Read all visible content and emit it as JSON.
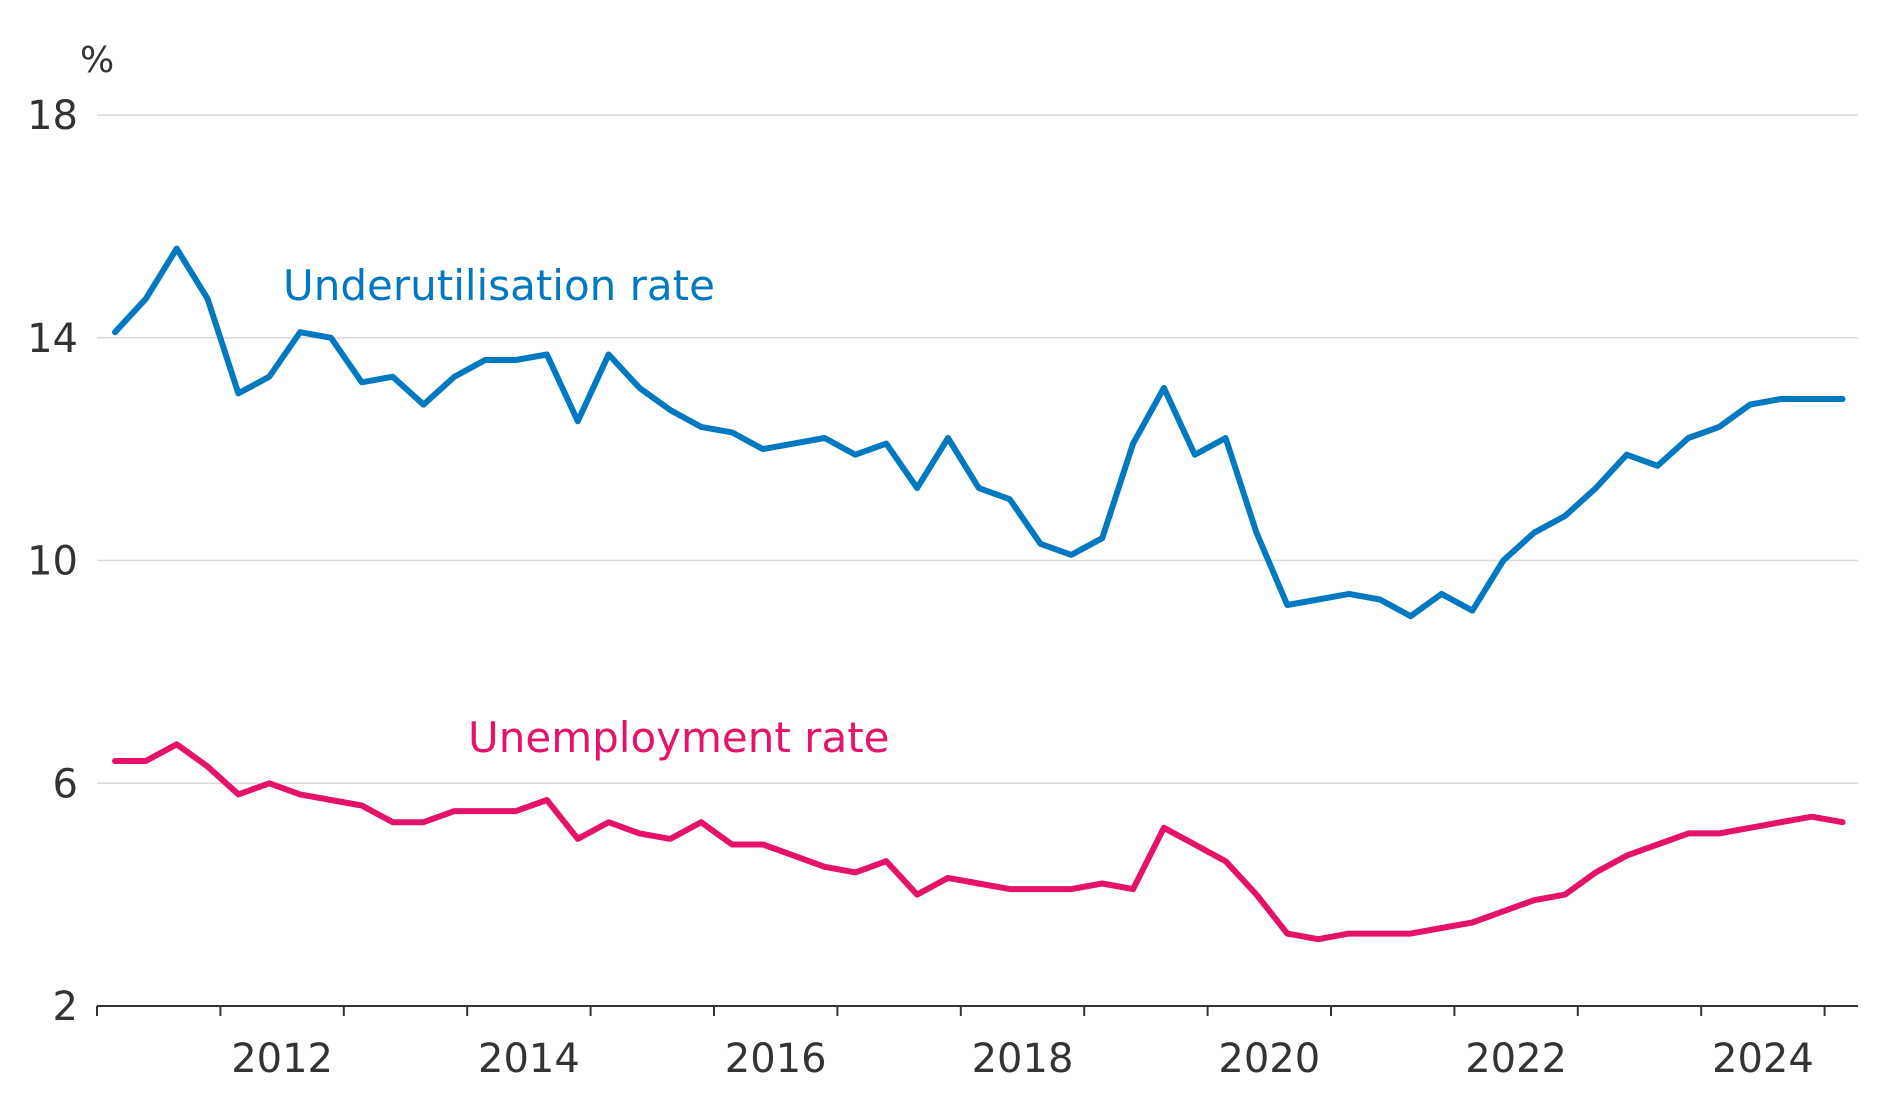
{
  "chart_data": {
    "type": "line",
    "y_unit": "%",
    "ylim": [
      2,
      18
    ],
    "yticks": [
      2,
      6,
      10,
      14,
      18
    ],
    "x_tick_labels": [
      "2012",
      "2014",
      "2016",
      "2018",
      "2020",
      "2022",
      "2024"
    ],
    "x_range": [
      "2011-Q3",
      "2025-Q4"
    ],
    "grid": true,
    "x": [
      "2011-Q3",
      "2011-Q4",
      "2012-Q1",
      "2012-Q2",
      "2012-Q3",
      "2012-Q4",
      "2013-Q1",
      "2013-Q2",
      "2013-Q3",
      "2013-Q4",
      "2014-Q1",
      "2014-Q2",
      "2014-Q3",
      "2014-Q4",
      "2015-Q1",
      "2015-Q2",
      "2015-Q3",
      "2015-Q4",
      "2016-Q1",
      "2016-Q2",
      "2016-Q3",
      "2016-Q4",
      "2017-Q1",
      "2017-Q2",
      "2017-Q3",
      "2017-Q4",
      "2018-Q1",
      "2018-Q2",
      "2018-Q3",
      "2018-Q4",
      "2019-Q1",
      "2019-Q2",
      "2019-Q3",
      "2019-Q4",
      "2020-Q1",
      "2020-Q2",
      "2020-Q3",
      "2020-Q4",
      "2021-Q1",
      "2021-Q2",
      "2021-Q3",
      "2021-Q4",
      "2022-Q1",
      "2022-Q2",
      "2022-Q3",
      "2022-Q4",
      "2023-Q1",
      "2023-Q2",
      "2023-Q3",
      "2023-Q4",
      "2024-Q1",
      "2024-Q2",
      "2024-Q3",
      "2024-Q4",
      "2025-Q1",
      "2025-Q2",
      "2025-Q3"
    ],
    "series": [
      {
        "name": "Underutilisation rate",
        "color": "#0079C1",
        "values": [
          14.1,
          14.7,
          15.6,
          14.7,
          13.0,
          13.3,
          14.1,
          14.0,
          13.2,
          13.3,
          12.8,
          13.3,
          13.6,
          13.6,
          13.7,
          12.5,
          13.7,
          13.1,
          12.7,
          12.4,
          12.3,
          12.0,
          12.1,
          12.2,
          11.9,
          12.1,
          11.3,
          12.2,
          11.3,
          11.1,
          10.3,
          10.1,
          10.4,
          12.1,
          13.1,
          11.9,
          12.2,
          10.5,
          9.2,
          9.3,
          9.4,
          9.3,
          9.0,
          9.4,
          9.1,
          10.0,
          10.5,
          10.8,
          11.3,
          11.9,
          11.7,
          12.2,
          12.4,
          12.8,
          12.9,
          12.9,
          12.9
        ]
      },
      {
        "name": "Unemployment rate",
        "color": "#E5126A",
        "values": [
          6.4,
          6.4,
          6.7,
          6.3,
          5.8,
          6.0,
          5.8,
          5.7,
          5.6,
          5.3,
          5.3,
          5.5,
          5.5,
          5.5,
          5.7,
          5.0,
          5.3,
          5.1,
          5.0,
          5.3,
          4.9,
          4.9,
          4.7,
          4.5,
          4.4,
          4.6,
          4.0,
          4.3,
          4.2,
          4.1,
          4.1,
          4.1,
          4.2,
          4.1,
          5.2,
          4.9,
          4.6,
          4.0,
          3.3,
          3.2,
          3.3,
          3.3,
          3.3,
          3.4,
          3.5,
          3.7,
          3.9,
          4.0,
          4.4,
          4.7,
          4.9,
          5.1,
          5.1,
          5.2,
          5.3,
          5.4,
          5.3
        ]
      }
    ]
  }
}
